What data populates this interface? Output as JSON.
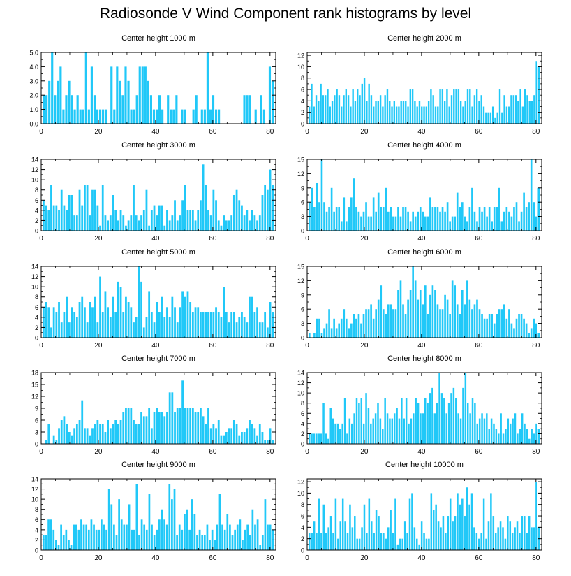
{
  "title": "Radiosonde V Wind Component rank histograms by level",
  "chart_data": [
    {
      "type": "bar",
      "title": "Center height 1000 m",
      "ylim": [
        0,
        5
      ],
      "yticks": [
        0,
        1,
        2,
        3,
        4,
        5
      ],
      "ytick_labels": [
        "0.0",
        "1.0",
        "2.0",
        "3.0",
        "4.0",
        "5.0"
      ],
      "xticks": [
        0,
        20,
        40,
        60,
        80
      ],
      "xtick_labels": [
        "0",
        "20",
        "40",
        "60",
        "80"
      ],
      "values": [
        2,
        2,
        3,
        5,
        2,
        3,
        4,
        1,
        2,
        3,
        2,
        1,
        2,
        1,
        1,
        5,
        1,
        4,
        2,
        1,
        1,
        1,
        1,
        0,
        4,
        1,
        4,
        3,
        2,
        4,
        3,
        1,
        1,
        2,
        4,
        4,
        4,
        3,
        2,
        1,
        1,
        2,
        1,
        0,
        2,
        1,
        1,
        2,
        0,
        1,
        1,
        0,
        0,
        1,
        2,
        0,
        1,
        1,
        5,
        1,
        2,
        1,
        1,
        0,
        0,
        0,
        0,
        0,
        0,
        0,
        0,
        2,
        2,
        2,
        0,
        1,
        0,
        2,
        1,
        0,
        4,
        3
      ]
    },
    {
      "type": "bar",
      "title": "Center height 2000 m",
      "ylim": [
        0,
        12.5
      ],
      "yticks": [
        0,
        2,
        4,
        6,
        8,
        10,
        12
      ],
      "ytick_labels": [
        "0",
        "2",
        "4",
        "6",
        "8",
        "10",
        "12"
      ],
      "xticks": [
        0,
        20,
        40,
        60,
        80
      ],
      "xtick_labels": [
        "0",
        "20",
        "40",
        "60",
        "80"
      ],
      "values": [
        3,
        7,
        3,
        5,
        4,
        7,
        5,
        5,
        6,
        3,
        4,
        5,
        6,
        5,
        3,
        5,
        6,
        5,
        3,
        6,
        4,
        6,
        5,
        7,
        8,
        4,
        7,
        5,
        3,
        4,
        4,
        5,
        3,
        5,
        6,
        4,
        3,
        4,
        3,
        3,
        4,
        4,
        4,
        3,
        6,
        6,
        4,
        3,
        4,
        3,
        3,
        3,
        4,
        6,
        5,
        3,
        3,
        6,
        6,
        4,
        6,
        3,
        5,
        6,
        6,
        6,
        4,
        3,
        4,
        6,
        6,
        3,
        5,
        6,
        4,
        5,
        3,
        2,
        2,
        2,
        3,
        1,
        2,
        6,
        2,
        5,
        3,
        3,
        5,
        5,
        5,
        4,
        6,
        3,
        6,
        5,
        4,
        4,
        5,
        11,
        10
      ]
    },
    {
      "type": "bar",
      "title": "Center height 3000 m",
      "ylim": [
        0,
        14
      ],
      "yticks": [
        0,
        2,
        4,
        6,
        8,
        10,
        12,
        14
      ],
      "ytick_labels": [
        "0",
        "2",
        "4",
        "6",
        "8",
        "10",
        "12",
        "14"
      ],
      "xticks": [
        0,
        20,
        40,
        60,
        80
      ],
      "xtick_labels": [
        "0",
        "20",
        "40",
        "60",
        "80"
      ],
      "values": [
        6,
        5,
        4,
        9,
        5,
        5,
        4,
        8,
        5,
        4,
        7,
        7,
        3,
        3,
        8,
        5,
        9,
        9,
        3,
        8,
        8,
        5,
        1,
        9,
        3,
        2,
        3,
        7,
        4,
        2,
        4,
        3,
        1,
        2,
        3,
        9,
        3,
        2,
        3,
        4,
        8,
        1,
        4,
        5,
        3,
        5,
        5,
        1,
        4,
        2,
        3,
        6,
        2,
        3,
        6,
        9,
        4,
        4,
        4,
        2,
        4,
        6,
        13,
        9,
        4,
        3,
        8,
        6,
        2,
        1,
        3,
        2,
        2,
        3,
        7,
        8,
        6,
        5,
        3,
        4,
        2,
        4,
        3,
        2,
        3,
        7,
        9,
        8,
        12,
        9
      ]
    },
    {
      "type": "bar",
      "title": "Center height 4000 m",
      "ylim": [
        0,
        15
      ],
      "yticks": [
        0,
        3,
        6,
        9,
        12,
        15
      ],
      "ytick_labels": [
        "0",
        "3",
        "6",
        "9",
        "12",
        "15"
      ],
      "xticks": [
        0,
        20,
        40,
        60,
        80
      ],
      "xtick_labels": [
        "0",
        "20",
        "40",
        "60",
        "80"
      ],
      "values": [
        6,
        9,
        5,
        10,
        6,
        15,
        6,
        4,
        5,
        9,
        4,
        5,
        5,
        2,
        7,
        2,
        5,
        7,
        11,
        5,
        4,
        3,
        4,
        6,
        3,
        3,
        7,
        4,
        8,
        5,
        5,
        9,
        4,
        5,
        3,
        3,
        5,
        3,
        5,
        5,
        4,
        2,
        4,
        3,
        4,
        5,
        4,
        3,
        3,
        7,
        5,
        5,
        5,
        4,
        5,
        4,
        6,
        2,
        3,
        3,
        8,
        5,
        6,
        3,
        2,
        5,
        9,
        4,
        2,
        5,
        4,
        5,
        3,
        5,
        2,
        5,
        5,
        9,
        2,
        4,
        5,
        4,
        3,
        5,
        6,
        2,
        4,
        8,
        5,
        6,
        15,
        6,
        3,
        9
      ]
    },
    {
      "type": "bar",
      "title": "Center height 5000 m",
      "ylim": [
        0,
        14
      ],
      "yticks": [
        0,
        2,
        4,
        6,
        8,
        10,
        12,
        14
      ],
      "ytick_labels": [
        "0",
        "2",
        "4",
        "6",
        "8",
        "10",
        "12",
        "14"
      ],
      "xticks": [
        0,
        20,
        40,
        60,
        80
      ],
      "xtick_labels": [
        "0",
        "20",
        "40",
        "60",
        "80"
      ],
      "values": [
        6,
        7,
        6,
        2,
        6,
        5,
        7,
        3,
        5,
        8,
        3,
        6,
        5,
        4,
        7,
        8,
        6,
        3,
        7,
        6,
        8,
        3,
        12,
        5,
        9,
        6,
        4,
        8,
        5,
        11,
        10,
        5,
        8,
        7,
        6,
        3,
        4,
        14,
        11,
        2,
        4,
        9,
        5,
        3,
        7,
        5,
        8,
        4,
        6,
        4,
        8,
        6,
        3,
        6,
        9,
        8,
        9,
        7,
        5,
        6,
        6,
        5,
        5,
        5,
        5,
        5,
        5,
        6,
        5,
        4,
        10,
        5,
        3,
        5,
        5,
        3,
        4,
        5,
        4,
        3,
        8,
        8,
        5,
        6,
        3,
        3,
        5,
        2,
        7,
        5
      ]
    },
    {
      "type": "bar",
      "title": "Center height 6000 m",
      "ylim": [
        0,
        15
      ],
      "yticks": [
        0,
        3,
        6,
        9,
        12,
        15
      ],
      "ytick_labels": [
        "0",
        "3",
        "6",
        "9",
        "12",
        "15"
      ],
      "xticks": [
        0,
        20,
        40,
        60,
        80
      ],
      "xtick_labels": [
        "0",
        "20",
        "40",
        "60",
        "80"
      ],
      "values": [
        1,
        0,
        1,
        4,
        4,
        1,
        2,
        3,
        6,
        2,
        4,
        2,
        3,
        4,
        6,
        4,
        2,
        3,
        5,
        4,
        5,
        3,
        5,
        6,
        6,
        7,
        4,
        6,
        8,
        11,
        6,
        5,
        7,
        7,
        6,
        6,
        10,
        12,
        7,
        5,
        8,
        10,
        15,
        12,
        8,
        10,
        7,
        11,
        5,
        9,
        11,
        10,
        7,
        6,
        6,
        9,
        8,
        5,
        12,
        11,
        7,
        5,
        10,
        7,
        12,
        8,
        6,
        7,
        8,
        6,
        5,
        4,
        4,
        5,
        5,
        3,
        5,
        6,
        6,
        7,
        4,
        6,
        3,
        2,
        4,
        5,
        5,
        4,
        3,
        1,
        2,
        4,
        3,
        1
      ]
    },
    {
      "type": "bar",
      "title": "Center height 7000 m",
      "ylim": [
        0,
        18
      ],
      "yticks": [
        0,
        3,
        6,
        9,
        12,
        15,
        18
      ],
      "ytick_labels": [
        "0",
        "3",
        "6",
        "9",
        "12",
        "15",
        "18"
      ],
      "xticks": [
        0,
        20,
        40,
        60,
        80
      ],
      "xtick_labels": [
        "0",
        "20",
        "40",
        "60",
        "80"
      ],
      "values": [
        0,
        1,
        5,
        0,
        2,
        1,
        4,
        6,
        7,
        5,
        3,
        2,
        4,
        5,
        6,
        11,
        4,
        4,
        2,
        4,
        5,
        6,
        5,
        5,
        3,
        6,
        4,
        5,
        6,
        5,
        6,
        8,
        9,
        9,
        9,
        6,
        5,
        5,
        8,
        7,
        7,
        9,
        4,
        8,
        9,
        8,
        8,
        7,
        8,
        13,
        13,
        8,
        9,
        9,
        16,
        9,
        9,
        9,
        9,
        8,
        8,
        9,
        7,
        5,
        9,
        4,
        5,
        4,
        6,
        2,
        2,
        3,
        4,
        4,
        6,
        5,
        2,
        3,
        3,
        4,
        6,
        5,
        4,
        2,
        5,
        3,
        1,
        1,
        4,
        1
      ]
    },
    {
      "type": "bar",
      "title": "Center height 8000 m",
      "ylim": [
        0,
        14
      ],
      "yticks": [
        0,
        2,
        4,
        6,
        8,
        10,
        12,
        14
      ],
      "ytick_labels": [
        "0",
        "2",
        "4",
        "6",
        "8",
        "10",
        "12",
        "14"
      ],
      "xticks": [
        0,
        20,
        40,
        60,
        80
      ],
      "xtick_labels": [
        "0",
        "20",
        "40",
        "60",
        "80"
      ],
      "values": [
        2,
        2,
        2,
        2,
        2,
        2,
        8,
        2,
        1,
        7,
        5,
        4,
        4,
        3,
        4,
        9,
        2,
        5,
        4,
        6,
        9,
        8,
        9,
        4,
        10,
        7,
        4,
        5,
        6,
        8,
        5,
        3,
        9,
        6,
        5,
        5,
        6,
        7,
        5,
        9,
        5,
        9,
        4,
        5,
        6,
        9,
        8,
        6,
        6,
        9,
        8,
        10,
        11,
        6,
        8,
        14,
        10,
        9,
        6,
        8,
        10,
        11,
        9,
        6,
        5,
        11,
        14,
        8,
        6,
        9,
        8,
        4,
        5,
        6,
        5,
        6,
        3,
        5,
        4,
        3,
        2,
        6,
        2,
        3,
        5,
        4,
        5,
        6,
        2,
        3,
        6,
        4,
        3,
        1,
        3,
        2,
        4,
        3
      ]
    },
    {
      "type": "bar",
      "title": "Center height 9000 m",
      "ylim": [
        0,
        14
      ],
      "yticks": [
        0,
        2,
        4,
        6,
        8,
        10,
        12,
        14
      ],
      "ytick_labels": [
        "0",
        "2",
        "4",
        "6",
        "8",
        "10",
        "12",
        "14"
      ],
      "xticks": [
        0,
        20,
        40,
        60,
        80
      ],
      "xtick_labels": [
        "0",
        "20",
        "40",
        "60",
        "80"
      ],
      "values": [
        3,
        3,
        6,
        6,
        4,
        2,
        1,
        5,
        3,
        4,
        2,
        1,
        5,
        5,
        4,
        6,
        5,
        5,
        4,
        6,
        5,
        4,
        4,
        6,
        5,
        4,
        12,
        9,
        5,
        3,
        10,
        6,
        5,
        5,
        9,
        4,
        4,
        13,
        3,
        6,
        5,
        4,
        11,
        5,
        3,
        4,
        6,
        8,
        6,
        5,
        13,
        10,
        12,
        3,
        5,
        4,
        7,
        8,
        4,
        10,
        7,
        3,
        4,
        3,
        3,
        5,
        2,
        4,
        2,
        5,
        11,
        5,
        4,
        7,
        5,
        3,
        4,
        5,
        6,
        2,
        4,
        5,
        3,
        8,
        5,
        6,
        1,
        3,
        10,
        5,
        5,
        4
      ]
    },
    {
      "type": "bar",
      "title": "Center height 10000 m",
      "ylim": [
        0,
        12.5
      ],
      "yticks": [
        0,
        2,
        4,
        6,
        8,
        10,
        12
      ],
      "ytick_labels": [
        "0",
        "2",
        "4",
        "6",
        "8",
        "10",
        "12"
      ],
      "xticks": [
        0,
        20,
        40,
        60,
        80
      ],
      "xtick_labels": [
        "0",
        "20",
        "40",
        "60",
        "80"
      ],
      "values": [
        3,
        3,
        5,
        3,
        9,
        3,
        8,
        3,
        4,
        6,
        3,
        9,
        2,
        5,
        9,
        5,
        3,
        8,
        4,
        6,
        2,
        2,
        4,
        8,
        3,
        9,
        5,
        3,
        7,
        6,
        3,
        3,
        2,
        4,
        7,
        3,
        9,
        1,
        2,
        2,
        5,
        3,
        9,
        10,
        4,
        2,
        1,
        5,
        3,
        2,
        2,
        10,
        7,
        8,
        5,
        4,
        6,
        3,
        6,
        9,
        5,
        6,
        10,
        8,
        9,
        6,
        11,
        8,
        10,
        4,
        3,
        2,
        3,
        9,
        2,
        5,
        10,
        6,
        3,
        4,
        5,
        4,
        2,
        6,
        5,
        3,
        4,
        5,
        3,
        6,
        6,
        3,
        6,
        4,
        4,
        12,
        4
      ]
    }
  ]
}
